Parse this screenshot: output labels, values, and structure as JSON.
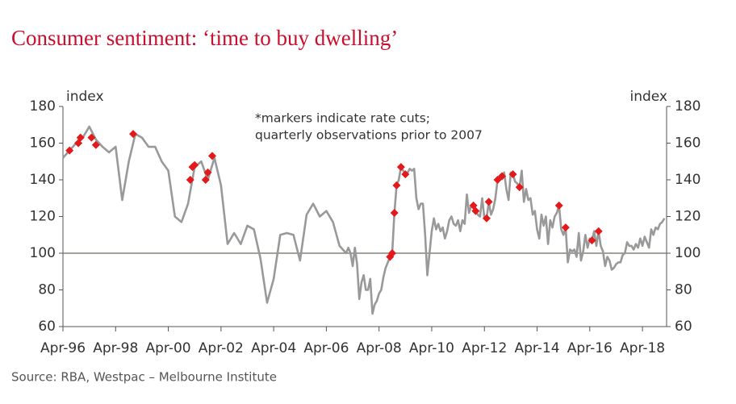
{
  "chart_data": {
    "type": "line",
    "title": "Consumer sentiment: ‘time to buy dwelling’",
    "ylabel": "index",
    "y2label": "index",
    "annotation": [
      "*markers indicate rate cuts;",
      "quarterly observations prior to 2007"
    ],
    "source": "Source: RBA, Westpac – Melbourne Institute",
    "xlim": [
      "1996-04",
      "2019-03"
    ],
    "xticks": [
      {
        "value": "1996-04",
        "label": "Apr-96"
      },
      {
        "value": "1998-04",
        "label": "Apr-98"
      },
      {
        "value": "2000-04",
        "label": "Apr-00"
      },
      {
        "value": "2002-04",
        "label": "Apr-02"
      },
      {
        "value": "2004-04",
        "label": "Apr-04"
      },
      {
        "value": "2006-04",
        "label": "Apr-06"
      },
      {
        "value": "2008-04",
        "label": "Apr-08"
      },
      {
        "value": "2010-04",
        "label": "Apr-10"
      },
      {
        "value": "2012-04",
        "label": "Apr-12"
      },
      {
        "value": "2014-04",
        "label": "Apr-14"
      },
      {
        "value": "2016-04",
        "label": "Apr-16"
      },
      {
        "value": "2018-04",
        "label": "Apr-18"
      }
    ],
    "ylim": [
      60,
      180
    ],
    "yticks": [
      60,
      80,
      100,
      120,
      140,
      160,
      180
    ],
    "y2lim": [
      60,
      180
    ],
    "y2ticks": [
      60,
      80,
      100,
      120,
      140,
      160,
      180
    ],
    "reference_line": 100,
    "x": [
      "1996-04",
      "1996-07",
      "1996-10",
      "1997-01",
      "1997-04",
      "1997-07",
      "1997-10",
      "1998-01",
      "1998-04",
      "1998-07",
      "1998-10",
      "1999-01",
      "1999-04",
      "1999-07",
      "1999-10",
      "2000-01",
      "2000-04",
      "2000-07",
      "2000-10",
      "2001-01",
      "2001-04",
      "2001-07",
      "2001-10",
      "2002-01",
      "2002-04",
      "2002-07",
      "2002-10",
      "2003-01",
      "2003-04",
      "2003-07",
      "2003-10",
      "2004-01",
      "2004-04",
      "2004-07",
      "2004-10",
      "2005-01",
      "2005-04",
      "2005-07",
      "2005-10",
      "2006-01",
      "2006-04",
      "2006-07",
      "2006-10",
      "2007-01",
      "2007-02",
      "2007-03",
      "2007-04",
      "2007-05",
      "2007-06",
      "2007-07",
      "2007-08",
      "2007-09",
      "2007-10",
      "2007-11",
      "2007-12",
      "2008-01",
      "2008-02",
      "2008-03",
      "2008-04",
      "2008-05",
      "2008-06",
      "2008-07",
      "2008-08",
      "2008-09",
      "2008-10",
      "2008-11",
      "2008-12",
      "2009-01",
      "2009-02",
      "2009-03",
      "2009-04",
      "2009-05",
      "2009-06",
      "2009-07",
      "2009-08",
      "2009-09",
      "2009-10",
      "2009-11",
      "2009-12",
      "2010-01",
      "2010-02",
      "2010-03",
      "2010-04",
      "2010-05",
      "2010-06",
      "2010-07",
      "2010-08",
      "2010-09",
      "2010-10",
      "2010-11",
      "2010-12",
      "2011-01",
      "2011-02",
      "2011-03",
      "2011-04",
      "2011-05",
      "2011-06",
      "2011-07",
      "2011-08",
      "2011-09",
      "2011-10",
      "2011-11",
      "2011-12",
      "2012-01",
      "2012-02",
      "2012-03",
      "2012-04",
      "2012-05",
      "2012-06",
      "2012-07",
      "2012-08",
      "2012-09",
      "2012-10",
      "2012-11",
      "2012-12",
      "2013-01",
      "2013-02",
      "2013-03",
      "2013-04",
      "2013-05",
      "2013-06",
      "2013-07",
      "2013-08",
      "2013-09",
      "2013-10",
      "2013-11",
      "2013-12",
      "2014-01",
      "2014-02",
      "2014-03",
      "2014-04",
      "2014-05",
      "2014-06",
      "2014-07",
      "2014-08",
      "2014-09",
      "2014-10",
      "2014-11",
      "2014-12",
      "2015-01",
      "2015-02",
      "2015-03",
      "2015-04",
      "2015-05",
      "2015-06",
      "2015-07",
      "2015-08",
      "2015-09",
      "2015-10",
      "2015-11",
      "2015-12",
      "2016-01",
      "2016-02",
      "2016-03",
      "2016-04",
      "2016-05",
      "2016-06",
      "2016-07",
      "2016-08",
      "2016-09",
      "2016-10",
      "2016-11",
      "2016-12",
      "2017-01",
      "2017-02",
      "2017-03",
      "2017-04",
      "2017-05",
      "2017-06",
      "2017-07",
      "2017-08",
      "2017-09",
      "2017-10",
      "2017-11",
      "2017-12",
      "2018-01",
      "2018-02",
      "2018-03",
      "2018-04",
      "2018-05",
      "2018-06",
      "2018-07",
      "2018-08",
      "2018-09",
      "2018-10",
      "2018-11",
      "2018-12",
      "2019-01",
      "2019-02"
    ],
    "series": [
      {
        "color": "#999999",
        "values": [
          152,
          156,
          160,
          163,
          169,
          162,
          158,
          155,
          158,
          129,
          150,
          165,
          163,
          158,
          158,
          150,
          145,
          120,
          117,
          127,
          147,
          150,
          140,
          152,
          137,
          105,
          111,
          105,
          115,
          113,
          97,
          73,
          86,
          110,
          111,
          110,
          96,
          121,
          127,
          120,
          123,
          117,
          104,
          100,
          103,
          100,
          93,
          103,
          94,
          75,
          84,
          88,
          80,
          80,
          86,
          67,
          72,
          74,
          78,
          80,
          87,
          92,
          95,
          98,
          100,
          122,
          137,
          140,
          147,
          145,
          143,
          144,
          146,
          145,
          146,
          130,
          124,
          127,
          127,
          110,
          88,
          100,
          112,
          119,
          113,
          116,
          112,
          114,
          108,
          112,
          118,
          120,
          116,
          115,
          118,
          112,
          118,
          116,
          132,
          122,
          126,
          126,
          123,
          121,
          120,
          130,
          119,
          119,
          128,
          121,
          124,
          130,
          140,
          141,
          142,
          144,
          135,
          129,
          144,
          143,
          139,
          138,
          136,
          145,
          128,
          135,
          129,
          130,
          121,
          123,
          113,
          108,
          121,
          115,
          120,
          105,
          118,
          114,
          120,
          122,
          126,
          113,
          110,
          114,
          95,
          102,
          101,
          102,
          98,
          111,
          96,
          101,
          110,
          103,
          108,
          107,
          112,
          104,
          112,
          104,
          101,
          93,
          98,
          96,
          91,
          92,
          94,
          95,
          95,
          99,
          100,
          106,
          104,
          104,
          102,
          105,
          103,
          108,
          104,
          109,
          106,
          103,
          113,
          110,
          114,
          113,
          116,
          117,
          119
        ]
      }
    ],
    "markers": {
      "color": "#e3191b",
      "x": [
        "1996-07",
        "1996-11",
        "1996-12",
        "1997-05",
        "1997-07",
        "1998-12",
        "2001-02",
        "2001-03",
        "2001-04",
        "2001-09",
        "2001-10",
        "2001-12",
        "2008-09",
        "2008-10",
        "2008-11",
        "2008-12",
        "2009-02",
        "2009-04",
        "2011-11",
        "2011-12",
        "2012-05",
        "2012-06",
        "2012-10",
        "2012-12",
        "2013-05",
        "2013-08",
        "2015-02",
        "2015-05",
        "2016-05",
        "2016-08"
      ],
      "values": [
        156,
        160,
        163,
        163,
        159,
        165,
        140,
        147,
        148,
        140,
        144,
        153,
        98,
        100,
        122,
        137,
        147,
        143,
        126,
        123,
        119,
        128,
        140,
        142,
        143,
        136,
        126,
        114,
        107,
        112
      ]
    }
  }
}
